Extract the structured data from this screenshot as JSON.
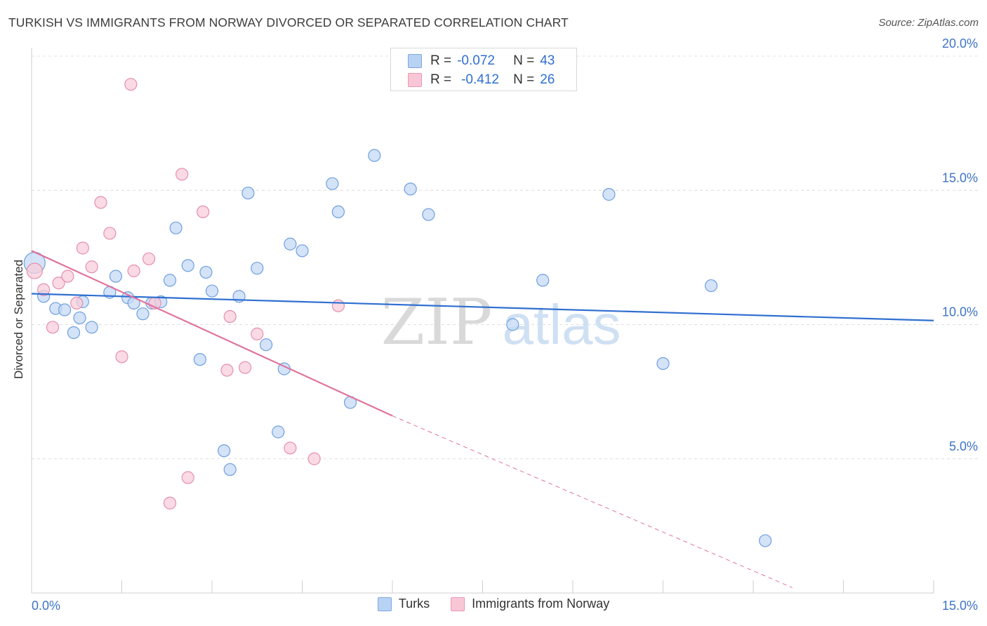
{
  "title": "TURKISH VS IMMIGRANTS FROM NORWAY DIVORCED OR SEPARATED CORRELATION CHART",
  "source": "Source: ZipAtlas.com",
  "watermark": {
    "zip": "ZIP",
    "atlas": "atlas"
  },
  "legend_top": {
    "rows": [
      {
        "r_label": "R =",
        "r_value": "-0.072",
        "n_label": "N =",
        "n_value": "43"
      },
      {
        "r_label": "R =",
        "r_value": "-0.412",
        "n_label": "N =",
        "n_value": "26"
      }
    ]
  },
  "legend_bottom": [
    "Turks",
    "Immigrants from Norway"
  ],
  "chart_data": {
    "type": "scatter",
    "title": "TURKISH VS IMMIGRANTS FROM NORWAY DIVORCED OR SEPARATED CORRELATION CHART",
    "xlabel": "",
    "ylabel": "Divorced or Separated",
    "xlim": [
      0,
      15
    ],
    "ylim": [
      0,
      20
    ],
    "x_tick_labels": [
      {
        "value": 0,
        "label": "0.0%"
      },
      {
        "value": 15,
        "label": "15.0%"
      }
    ],
    "y_tick_labels": [
      {
        "value": 5,
        "label": "5.0%"
      },
      {
        "value": 10,
        "label": "10.0%"
      },
      {
        "value": 15,
        "label": "15.0%"
      },
      {
        "value": 20,
        "label": "20.0%"
      }
    ],
    "series": [
      {
        "name": "Turks",
        "color": "#6e9fe0",
        "fill": "#c5daf5",
        "trend_color": "#2f6fd0",
        "trend": {
          "x0": 0,
          "y0": 11.15,
          "x1": 15,
          "y1": 10.15
        },
        "points": [
          [
            0.05,
            12.3
          ],
          [
            0.2,
            11.05
          ],
          [
            0.4,
            10.6
          ],
          [
            0.55,
            10.55
          ],
          [
            0.7,
            9.7
          ],
          [
            0.8,
            10.25
          ],
          [
            0.85,
            10.85
          ],
          [
            1.0,
            9.9
          ],
          [
            1.3,
            11.2
          ],
          [
            1.4,
            11.8
          ],
          [
            1.6,
            11.0
          ],
          [
            1.7,
            10.8
          ],
          [
            1.85,
            10.4
          ],
          [
            2.0,
            10.8
          ],
          [
            2.15,
            10.85
          ],
          [
            2.3,
            11.65
          ],
          [
            2.4,
            13.6
          ],
          [
            2.6,
            12.2
          ],
          [
            2.8,
            8.7
          ],
          [
            2.9,
            11.95
          ],
          [
            3.0,
            11.25
          ],
          [
            3.2,
            5.3
          ],
          [
            3.3,
            4.6
          ],
          [
            3.45,
            11.05
          ],
          [
            3.6,
            14.9
          ],
          [
            3.75,
            12.1
          ],
          [
            3.9,
            9.25
          ],
          [
            4.1,
            6.0
          ],
          [
            4.2,
            8.35
          ],
          [
            4.3,
            13.0
          ],
          [
            4.5,
            12.75
          ],
          [
            5.0,
            15.25
          ],
          [
            5.1,
            14.2
          ],
          [
            5.3,
            7.1
          ],
          [
            5.7,
            16.3
          ],
          [
            6.3,
            15.05
          ],
          [
            6.6,
            14.1
          ],
          [
            8.0,
            10.0
          ],
          [
            8.5,
            11.65
          ],
          [
            9.6,
            14.85
          ],
          [
            10.5,
            8.55
          ],
          [
            11.3,
            11.45
          ],
          [
            12.2,
            1.95
          ]
        ]
      },
      {
        "name": "Immigrants from Norway",
        "color": "#e58fad",
        "fill": "#f8cddb",
        "trend_color": "#e0739c",
        "trend": {
          "x0": 0,
          "y0": 12.75,
          "x1": 6.0,
          "y1": 6.6
        },
        "trend_extension": {
          "x0": 6.0,
          "y0": 6.6,
          "x1": 12.65,
          "y1": 0.2
        },
        "points": [
          [
            0.05,
            12.0
          ],
          [
            0.2,
            11.3
          ],
          [
            0.35,
            9.9
          ],
          [
            0.45,
            11.55
          ],
          [
            0.6,
            11.8
          ],
          [
            0.75,
            10.8
          ],
          [
            0.85,
            12.85
          ],
          [
            1.0,
            12.15
          ],
          [
            1.15,
            14.55
          ],
          [
            1.3,
            13.4
          ],
          [
            1.5,
            8.8
          ],
          [
            1.7,
            12.0
          ],
          [
            1.65,
            18.95
          ],
          [
            1.95,
            12.45
          ],
          [
            2.05,
            10.8
          ],
          [
            2.3,
            3.35
          ],
          [
            2.5,
            15.6
          ],
          [
            2.6,
            4.3
          ],
          [
            2.85,
            14.2
          ],
          [
            3.25,
            8.3
          ],
          [
            3.3,
            10.3
          ],
          [
            3.55,
            8.4
          ],
          [
            3.75,
            9.65
          ],
          [
            4.3,
            5.4
          ],
          [
            4.7,
            5.0
          ],
          [
            5.1,
            10.7
          ]
        ]
      }
    ]
  }
}
